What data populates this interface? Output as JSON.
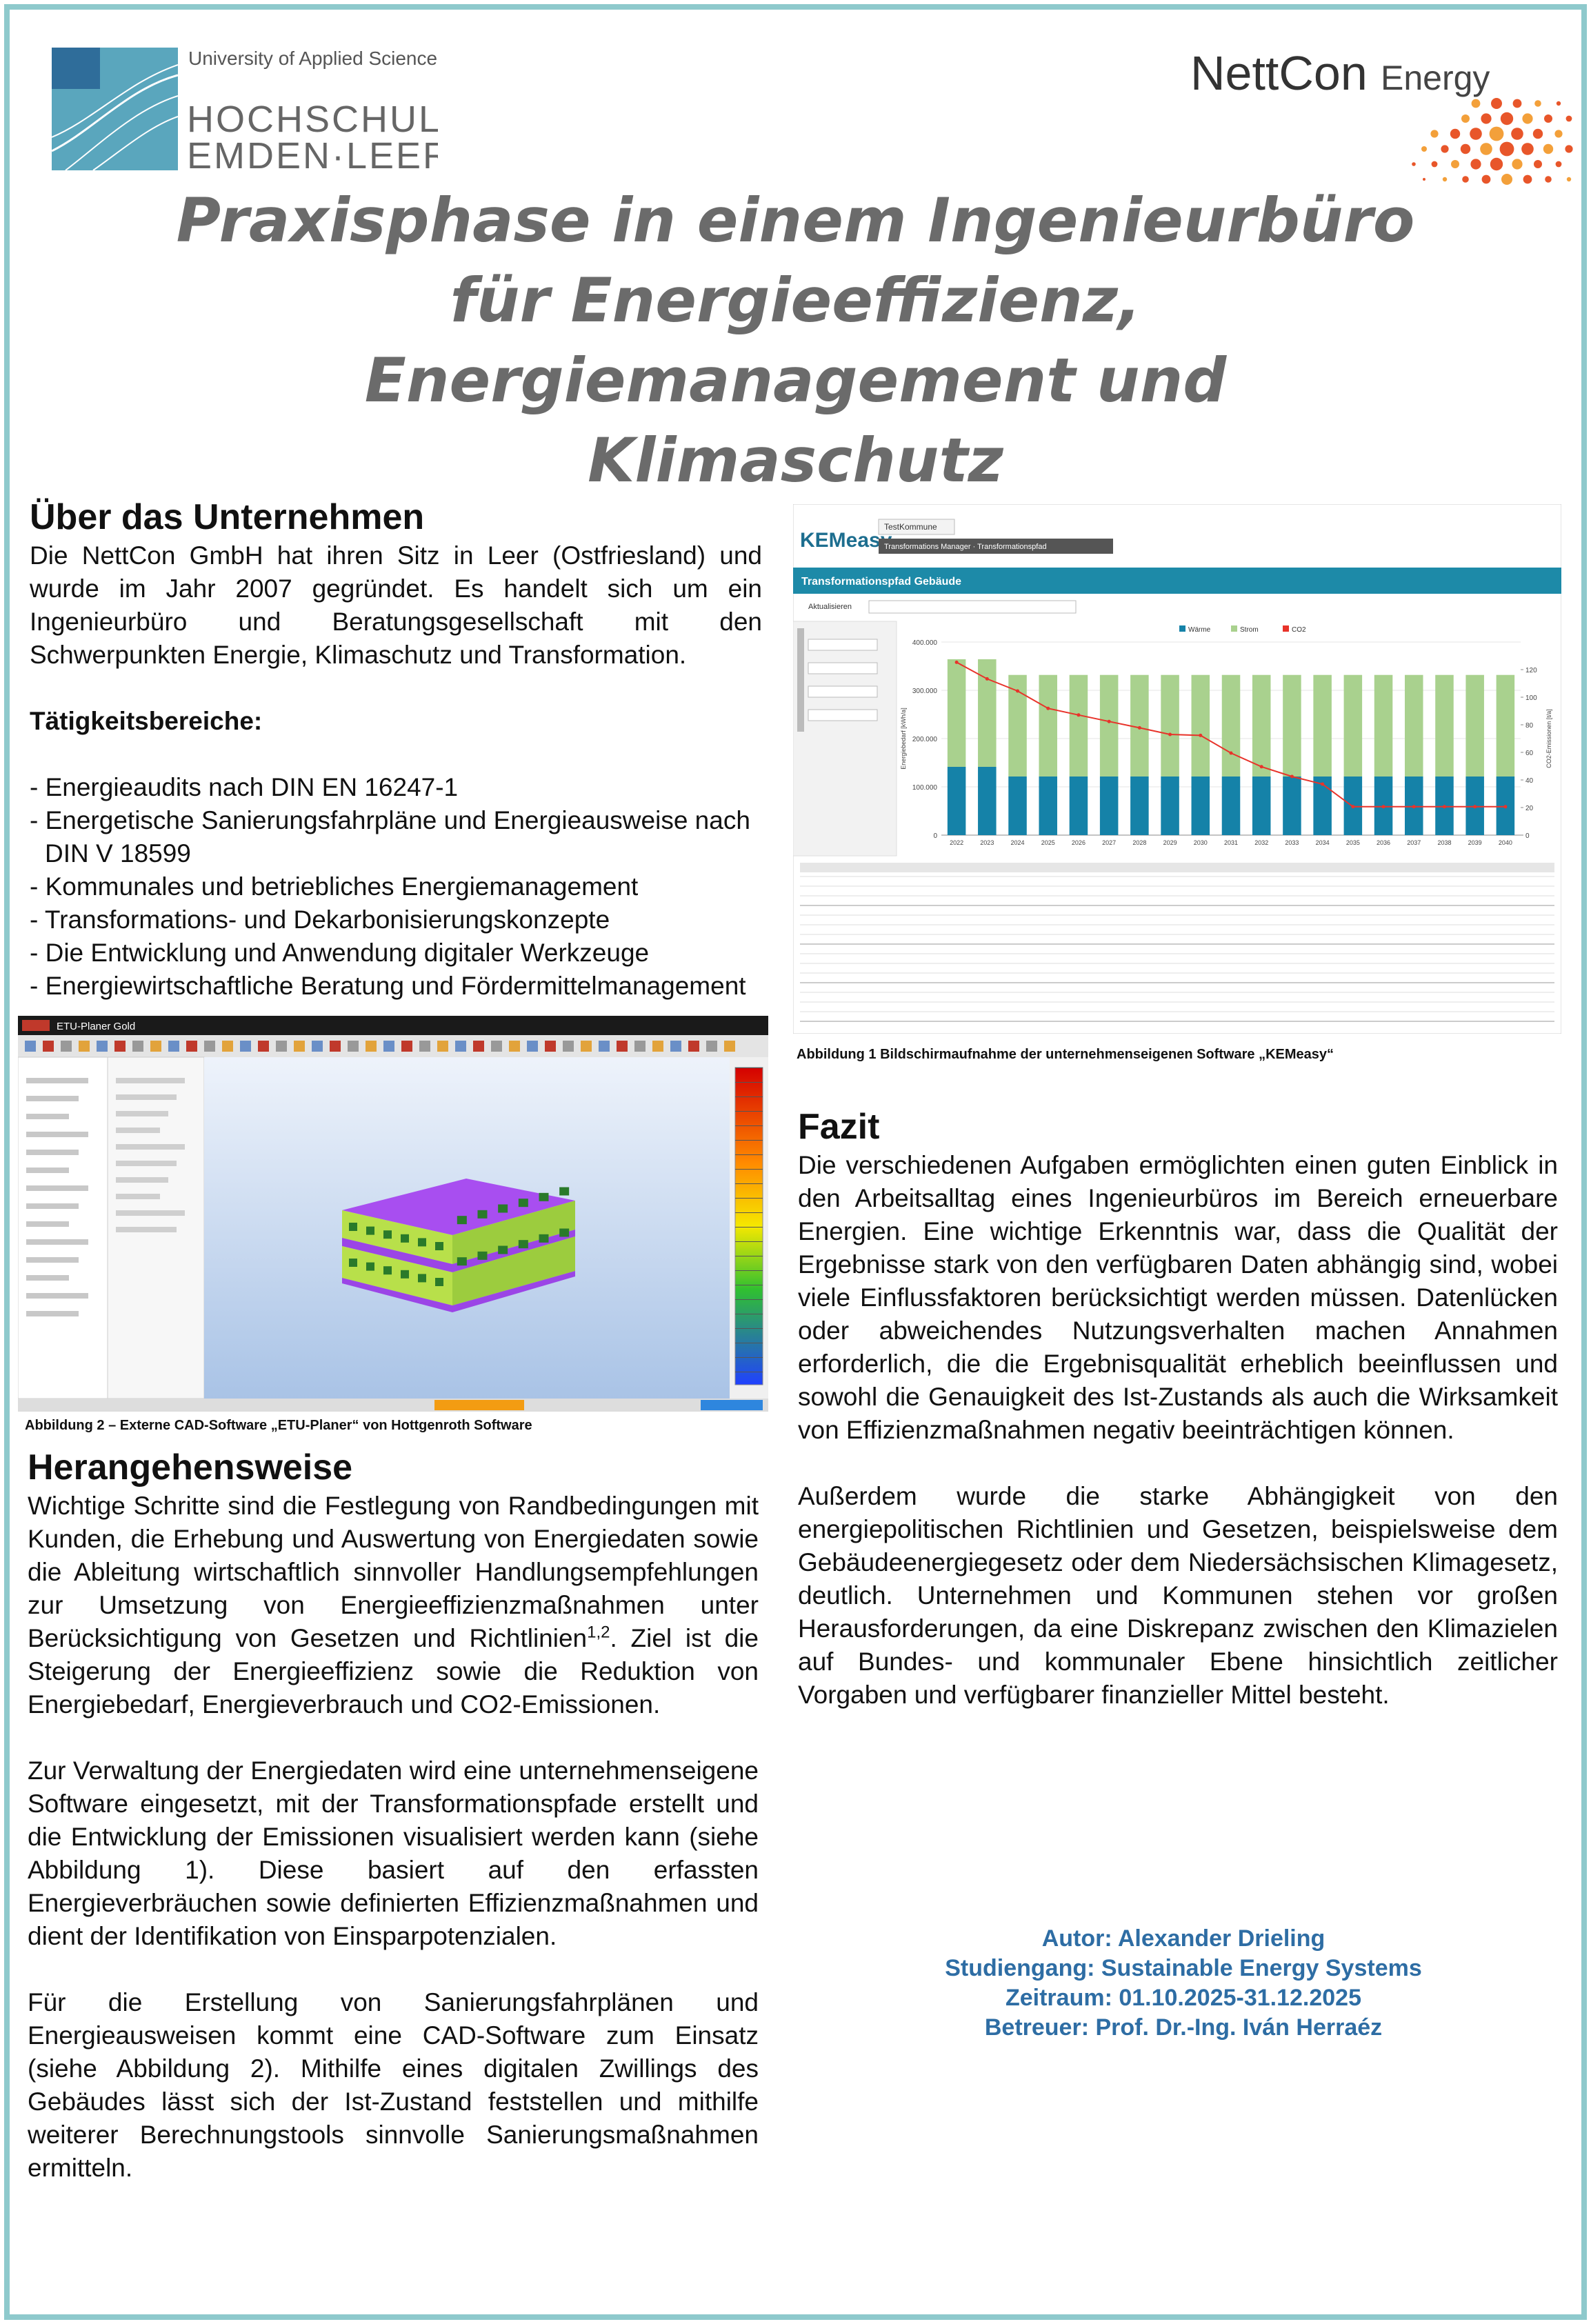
{
  "header": {
    "university": {
      "tagline": "University of Applied Sciences",
      "name_line1": "HOCHSCHULE",
      "name_line2": "EMDEN·LEER"
    },
    "company": {
      "name": "NettCon",
      "suffix": "Energy"
    }
  },
  "title": [
    "Praxisphase in einem Ingenieurbüro",
    "für Energieeffizienz,",
    "Energiemanagement und",
    "Klimaschutz"
  ],
  "about": {
    "heading": "Über das Unternehmen",
    "text": "Die NettCon GmbH hat ihren Sitz in Leer (Ostfriesland) und wurde im Jahr 2007 gegründet. Es handelt sich um ein Ingenieurbüro und Beratungsgesellschaft mit den Schwerpunkten Energie, Klimaschutz und Transformation.",
    "activities_heading": "Tätigkeitsbereiche:",
    "activities": [
      "- Energieaudits nach DIN EN 16247-1",
      "- Energetische Sanierungsfahrpläne und Energieausweise nach DIN V 18599",
      "- Kommunales und betriebliches Energiemanagement",
      "- Transformations- und Dekarbonisierungskonzepte",
      "- Die Entwicklung und Anwendung digitaler Werkzeuge",
      "- Energiewirtschaftliche Beratung und Fördermittelmanagement"
    ]
  },
  "figure1": {
    "app_name": "KEMeasy",
    "municipality": "TestKommune",
    "breadcrumb": "Transformations Manager · Transformationspfad",
    "panel_title": "Transformationspfad Gebäude",
    "control_label": "Aktualisieren",
    "caption": "Abbildung 1 Bildschirmaufnahme der unternehmenseigenen Software „KEMeasy“",
    "chart_data": {
      "type": "bar",
      "stacked": true,
      "categories": [
        "2022",
        "2023",
        "2024",
        "2025",
        "2026",
        "2027",
        "2028",
        "2029",
        "2030",
        "2031",
        "2032",
        "2033",
        "2034",
        "2035",
        "2036",
        "2037",
        "2038",
        "2039",
        "2040"
      ],
      "series": [
        {
          "name": "Wärme",
          "color": "#1582a8",
          "values": [
            141442,
            141442,
            121442,
            121442,
            121442,
            121442,
            121442,
            121442,
            121442,
            121442,
            121442,
            121442,
            121442,
            121442,
            121442,
            121442,
            121442,
            121442,
            121442
          ]
        },
        {
          "name": "Strom",
          "color": "#a9d18e",
          "values": [
            222884,
            222884,
            210394,
            210394,
            210394,
            210394,
            210394,
            210394,
            210394,
            210394,
            210394,
            210394,
            210394,
            210394,
            210394,
            210394,
            210394,
            210394,
            210394
          ]
        },
        {
          "name": "CO2",
          "color": "#e8332a",
          "type": "line",
          "axis": "y2",
          "values": [
            125.3,
            113.3,
            104.5,
            91.9,
            87.1,
            82.4,
            77.8,
            73.0,
            72.3,
            59.5,
            49.6,
            42.5,
            37.0,
            20.6,
            20.6,
            20.6,
            20.6,
            20.6,
            20.6
          ]
        }
      ],
      "ylim": [
        0,
        400000
      ],
      "yticks": [
        0,
        {
          "value": 100000,
          "label": "100.000"
        },
        {
          "value": 200000,
          "label": "200.000"
        },
        {
          "value": 300000,
          "label": "300.000"
        },
        {
          "value": 400000,
          "label": "400.000"
        }
      ],
      "y2lim": [
        0,
        140
      ],
      "y2ticks": [
        0,
        20,
        40,
        60,
        80,
        100,
        120
      ],
      "y_label": "Energiebedarf [kWh/a]",
      "y2_label": "CO2-Emissionen [t/a]",
      "grid": true
    }
  },
  "figure2": {
    "window_title": "ETU-Planer Gold",
    "caption": "Abbildung 2 – Externe CAD-Software „ETU-Planer“ von Hottgenroth Software"
  },
  "approach": {
    "heading": "Herangehensweise",
    "paragraphs": [
      [
        "Wichtige Schritte sind die Festlegung von Randbedingungen mit Kunden, die Erhebung und Auswertung von Energiedaten sowie die Ableitung wirtschaftlich sinnvoller Handlungsempfehlungen zur Umsetzung von Energieeffizienzmaßnahmen unter Berücksichtigung von Gesetzen und Richtlinien",
        "1,2",
        ". Ziel ist die Steigerung der Energieeffizienz sowie die Reduktion von Energiebedarf, Energieverbrauch und CO2-Emissionen."
      ],
      "Zur Verwaltung der Energiedaten wird eine unternehmenseigene Software eingesetzt, mit der Transformationspfade erstellt und die Entwicklung der Emissionen visualisiert werden kann (siehe Abbildung 1). Diese basiert auf den erfassten Energieverbräuchen sowie definierten Effizienzmaßnahmen und dient der Identifikation von Einsparpotenzialen.",
      "Für die Erstellung von Sanierungsfahrplänen und Energieausweisen kommt eine CAD-Software zum Einsatz (siehe Abbildung 2). Mithilfe eines digitalen Zwillings des Gebäudes lässt sich der Ist-Zustand feststellen und mithilfe weiterer Berechnungstools sinnvolle Sanierungsmaßnahmen ermitteln."
    ]
  },
  "conclusion": {
    "heading": "Fazit",
    "paragraphs": [
      "Die verschiedenen Aufgaben ermöglichten einen guten Einblick in den Arbeitsalltag eines Ingenieurbüros im Bereich erneuerbare Energien. Eine wichtige Erkenntnis war, dass die Qualität der Ergebnisse stark von den verfügbaren Daten abhängig sind, wobei viele Einflussfaktoren berücksichtigt werden müssen. Datenlücken oder abweichendes Nutzungsverhalten machen Annahmen erforderlich, die die Ergebnisqualität erheblich beeinflussen und sowohl die Genauigkeit des Ist-Zustands als auch die Wirksamkeit von Effizienzmaßnahmen negativ beeinträchtigen können.",
      "Außerdem wurde die starke Abhängigkeit von den energiepolitischen Richtlinien und Gesetzen, beispielsweise dem Gebäudeenergiegesetz oder dem Niedersächsischen Klimagesetz, deutlich. Unternehmen und Kommunen stehen vor großen Herausforderungen, da eine Diskrepanz zwischen den Klimazielen auf Bundes- und kommunaler Ebene hinsichtlich zeitlicher Vorgaben und verfügbarer finanzieller Mittel besteht."
    ]
  },
  "author": {
    "lines": [
      "Autor: Alexander Drieling",
      "Studiengang: Sustainable Energy Systems",
      "Zeitraum: 01.10.2025-31.12.2025",
      "Betreuer: Prof. Dr.-Ing. Iván Herraéz"
    ]
  }
}
